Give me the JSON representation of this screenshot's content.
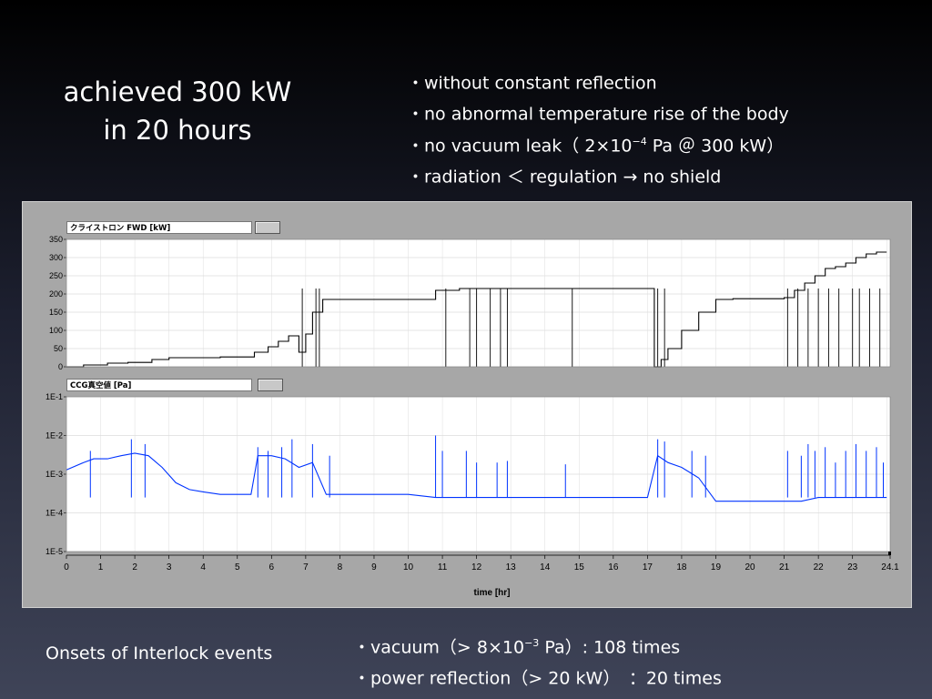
{
  "slide": {
    "title_line1": "achieved 300 kW",
    "title_line2": "in 20 hours",
    "bullets": [
      {
        "prefix": "・without constant reflection",
        "sup": "",
        "suffix": ""
      },
      {
        "prefix": "・no abnormal temperature rise of the body",
        "sup": "",
        "suffix": ""
      },
      {
        "prefix": "・no vacuum leak（ 2×10",
        "sup": "−4",
        "suffix": " Pa ＠ 300 kW）"
      },
      {
        "prefix": "・radiation ＜ regulation → no shield",
        "sup": "",
        "suffix": ""
      }
    ],
    "onsets_label": "Onsets of Interlock events",
    "events": [
      {
        "prefix": "・vacuum（> 8×10",
        "sup": "−3",
        "suffix": " Pa）: 108 times"
      },
      {
        "prefix": "・power reflection（> 20 kW）　：20 times",
        "sup": "",
        "suffix": ""
      }
    ]
  },
  "chart_data": [
    {
      "type": "line",
      "title": "クライストロン FWD [kW]",
      "ylabel": "",
      "ylim": [
        0,
        350
      ],
      "yticks": [
        "350",
        "300",
        "250",
        "200",
        "150",
        "100",
        "50",
        "0"
      ],
      "xlim": [
        0,
        24.1
      ],
      "grid": true,
      "color": "#000000",
      "series": [
        {
          "x": [
            0,
            0.5,
            1.2,
            1.8,
            2.5,
            3.0,
            4.5,
            5.4,
            5.5,
            5.9,
            6.2,
            6.5,
            6.8,
            7.0,
            7.2,
            7.5,
            7.6,
            8.5,
            9.5,
            10.5,
            10.8,
            11.0,
            11.5,
            11.7,
            12.5,
            12.8,
            13.5,
            14.5,
            15.5,
            16.5,
            17.2,
            17.4,
            17.6,
            18.0,
            18.5,
            19.0,
            19.5,
            20.0,
            20.5,
            21.0,
            21.3,
            21.6,
            21.9,
            22.2,
            22.5,
            22.8,
            23.1,
            23.4,
            23.7,
            24.0
          ],
          "y": [
            0,
            5,
            10,
            12,
            20,
            25,
            27,
            27,
            40,
            55,
            70,
            85,
            40,
            90,
            150,
            185,
            185,
            185,
            185,
            185,
            210,
            210,
            215,
            215,
            215,
            215,
            215,
            215,
            215,
            215,
            0,
            20,
            50,
            100,
            150,
            185,
            187,
            187,
            187,
            190,
            210,
            230,
            250,
            270,
            275,
            285,
            300,
            310,
            315,
            315
          ]
        }
      ]
    },
    {
      "type": "line",
      "title": "CCG真空値 [Pa]",
      "xlabel": "time [hr]",
      "ylim": [
        1e-05,
        0.1
      ],
      "yscale": "log",
      "yticks": [
        "1E-1",
        "1E-2",
        "1E-3",
        "1E-4",
        "1E-5"
      ],
      "xlim": [
        0,
        24.1
      ],
      "xticks": [
        "0",
        "1",
        "2",
        "3",
        "4",
        "5",
        "6",
        "7",
        "8",
        "9",
        "10",
        "11",
        "12",
        "13",
        "14",
        "15",
        "16",
        "17",
        "18",
        "19",
        "20",
        "21",
        "22",
        "23",
        "24.1"
      ],
      "grid": true,
      "color": "#0033ff",
      "series": [
        {
          "x": [
            0,
            0.5,
            0.8,
            1.2,
            1.6,
            2.0,
            2.4,
            2.8,
            3.2,
            3.6,
            4.0,
            4.5,
            5.0,
            5.4,
            5.6,
            6.0,
            6.4,
            6.8,
            7.2,
            7.6,
            8.0,
            9.0,
            10.0,
            10.8,
            11.0,
            11.5,
            12.0,
            12.5,
            13.0,
            14.0,
            15.0,
            16.0,
            17.0,
            17.3,
            17.6,
            18.0,
            18.5,
            19.0,
            20.0,
            20.5,
            21.0,
            21.5,
            22.0,
            22.5,
            23.0,
            23.5,
            24.0
          ],
          "y": [
            0.0013,
            0.002,
            0.0025,
            0.0025,
            0.003,
            0.0035,
            0.003,
            0.0015,
            0.0006,
            0.0004,
            0.00035,
            0.0003,
            0.0003,
            0.0003,
            0.003,
            0.003,
            0.0025,
            0.0015,
            0.002,
            0.0003,
            0.0003,
            0.0003,
            0.0003,
            0.00025,
            0.00025,
            0.00025,
            0.00025,
            0.00025,
            0.00025,
            0.00025,
            0.00025,
            0.00025,
            0.00025,
            0.003,
            0.002,
            0.0015,
            0.0008,
            0.0002,
            0.0002,
            0.0002,
            0.0002,
            0.0002,
            0.00025,
            0.00025,
            0.00025,
            0.00025,
            0.00025
          ]
        }
      ],
      "spikes": [
        {
          "x": 0.7,
          "y": 0.004
        },
        {
          "x": 1.9,
          "y": 0.008
        },
        {
          "x": 2.3,
          "y": 0.006
        },
        {
          "x": 5.6,
          "y": 0.005
        },
        {
          "x": 5.9,
          "y": 0.004
        },
        {
          "x": 6.3,
          "y": 0.005
        },
        {
          "x": 6.6,
          "y": 0.008
        },
        {
          "x": 7.2,
          "y": 0.006
        },
        {
          "x": 7.7,
          "y": 0.003
        },
        {
          "x": 10.8,
          "y": 0.01
        },
        {
          "x": 11.0,
          "y": 0.004
        },
        {
          "x": 11.7,
          "y": 0.004
        },
        {
          "x": 12.0,
          "y": 0.002
        },
        {
          "x": 12.6,
          "y": 0.002
        },
        {
          "x": 12.9,
          "y": 0.0022
        },
        {
          "x": 14.6,
          "y": 0.0018
        },
        {
          "x": 17.3,
          "y": 0.008
        },
        {
          "x": 17.5,
          "y": 0.007
        },
        {
          "x": 18.3,
          "y": 0.004
        },
        {
          "x": 18.7,
          "y": 0.003
        },
        {
          "x": 21.1,
          "y": 0.004
        },
        {
          "x": 21.5,
          "y": 0.003
        },
        {
          "x": 21.7,
          "y": 0.006
        },
        {
          "x": 21.9,
          "y": 0.004
        },
        {
          "x": 22.2,
          "y": 0.005
        },
        {
          "x": 22.5,
          "y": 0.002
        },
        {
          "x": 22.8,
          "y": 0.004
        },
        {
          "x": 23.1,
          "y": 0.006
        },
        {
          "x": 23.4,
          "y": 0.004
        },
        {
          "x": 23.7,
          "y": 0.005
        },
        {
          "x": 23.9,
          "y": 0.002
        }
      ]
    }
  ]
}
